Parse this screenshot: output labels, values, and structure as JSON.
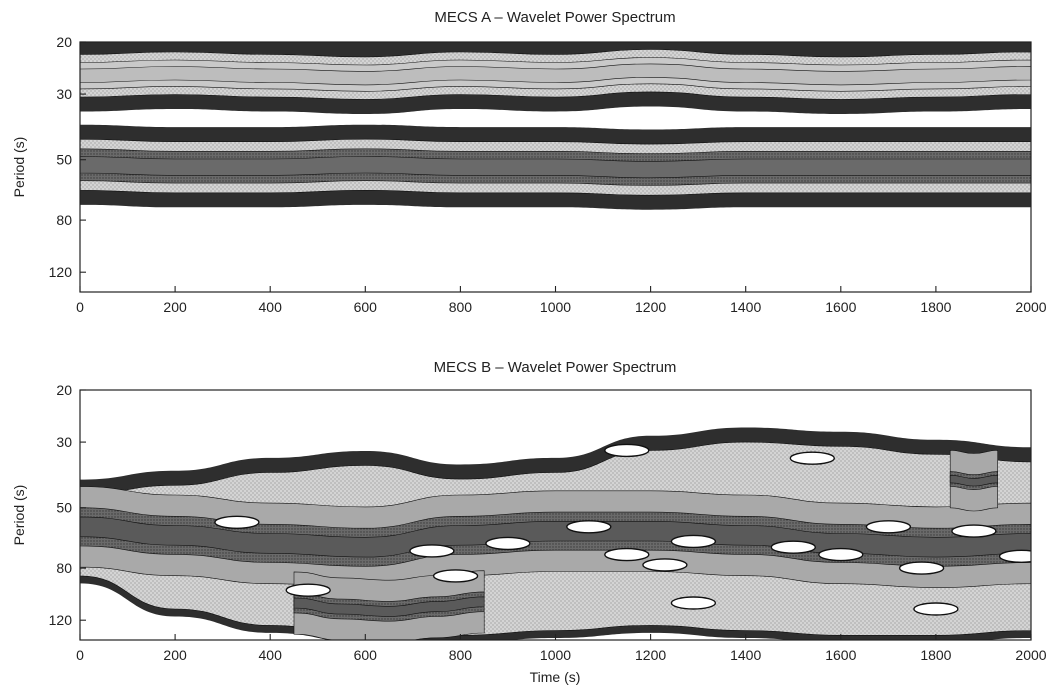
{
  "chart_data": [
    {
      "type": "heatmap",
      "title": "MECS A – Wavelet Power Spectrum",
      "xlabel": "",
      "ylabel": "Period (s)",
      "xlim": [
        0,
        2000
      ],
      "ylim": [
        20,
        140
      ],
      "y_scale": "log",
      "y_inverted": true,
      "x_ticks": [
        "0",
        "200",
        "400",
        "600",
        "800",
        "1000",
        "1200",
        "1400",
        "1600",
        "1800",
        "2000"
      ],
      "y_ticks": [
        "20",
        "30",
        "50",
        "80",
        "120"
      ],
      "grid": false,
      "levels": [
        "dark",
        "medium",
        "light",
        "light-dotted",
        "dense"
      ],
      "level_colors": {
        "dark": "#333333",
        "medium": "#8a8a8a",
        "light": "#c9c9c9",
        "light_dotted": "#d8d8d8",
        "dense": "#5b5b5b"
      },
      "bands": [
        {
          "name": "band-25s",
          "x": [
            0,
            200,
            400,
            600,
            800,
            1000,
            1200,
            1400,
            1600,
            1800,
            2000
          ],
          "period_center": [
            26,
            25.5,
            26,
            26.5,
            25.5,
            26,
            25,
            26,
            26.5,
            26,
            25.5
          ],
          "period_halfwidth_ratio": 1.18
        },
        {
          "name": "band-50s",
          "x": [
            0,
            200,
            400,
            600,
            800,
            1000,
            1200,
            1400,
            1600,
            1800,
            2000
          ],
          "period_center": [
            52,
            53,
            53,
            52,
            53,
            53,
            54,
            53,
            53,
            53,
            53
          ],
          "period_halfwidth_ratio": 1.22
        }
      ]
    },
    {
      "type": "heatmap",
      "title": "MECS B – Wavelet Power Spectrum",
      "xlabel": "Time (s)",
      "ylabel": "Period (s)",
      "xlim": [
        0,
        2000
      ],
      "ylim": [
        20,
        140
      ],
      "y_scale": "log",
      "y_inverted": true,
      "x_ticks": [
        "0",
        "200",
        "400",
        "600",
        "800",
        "1000",
        "1200",
        "1400",
        "1600",
        "1800",
        "2000"
      ],
      "y_ticks": [
        "20",
        "30",
        "50",
        "80",
        "120"
      ],
      "grid": false,
      "levels": [
        "dark",
        "medium",
        "light",
        "light-dotted",
        "dense"
      ],
      "regions": [
        {
          "name": "broad-low-frequency",
          "x": [
            0,
            200,
            400,
            600,
            800,
            1000,
            1200,
            1400,
            1600,
            1800,
            2000
          ],
          "period_top": [
            45,
            42,
            38,
            36,
            40,
            38,
            32,
            30,
            31,
            33,
            35
          ],
          "period_bottom": [
            85,
            110,
            125,
            135,
            135,
            130,
            125,
            130,
            135,
            135,
            130
          ]
        },
        {
          "name": "core-60s",
          "x": [
            0,
            200,
            400,
            600,
            800,
            1000,
            1200,
            1400,
            1600,
            1800,
            2000
          ],
          "period_center": [
            58,
            62,
            66,
            68,
            62,
            60,
            60,
            62,
            66,
            68,
            66
          ],
          "period_halfwidth_ratio": 1.16
        },
        {
          "name": "core-110s",
          "x": [
            450,
            550,
            650,
            750,
            850
          ],
          "period_center": [
            105,
            110,
            112,
            108,
            104
          ],
          "period_halfwidth_ratio": 1.08
        },
        {
          "name": "spot-40s",
          "x": [
            1830,
            1880,
            1930
          ],
          "period_center": [
            40,
            41,
            40
          ],
          "period_halfwidth_ratio": 1.06
        }
      ],
      "holes": [
        {
          "x": 330,
          "period": 56
        },
        {
          "x": 480,
          "period": 95
        },
        {
          "x": 740,
          "period": 70
        },
        {
          "x": 790,
          "period": 85
        },
        {
          "x": 900,
          "period": 66
        },
        {
          "x": 1070,
          "period": 58
        },
        {
          "x": 1150,
          "period": 72
        },
        {
          "x": 1230,
          "period": 78
        },
        {
          "x": 1290,
          "period": 65
        },
        {
          "x": 1500,
          "period": 68
        },
        {
          "x": 1600,
          "period": 72
        },
        {
          "x": 1700,
          "period": 58
        },
        {
          "x": 1770,
          "period": 80
        },
        {
          "x": 1880,
          "period": 60
        },
        {
          "x": 1980,
          "period": 73
        },
        {
          "x": 1540,
          "period": 34
        },
        {
          "x": 1150,
          "period": 32
        },
        {
          "x": 1290,
          "period": 105
        },
        {
          "x": 1800,
          "period": 110
        }
      ]
    }
  ]
}
